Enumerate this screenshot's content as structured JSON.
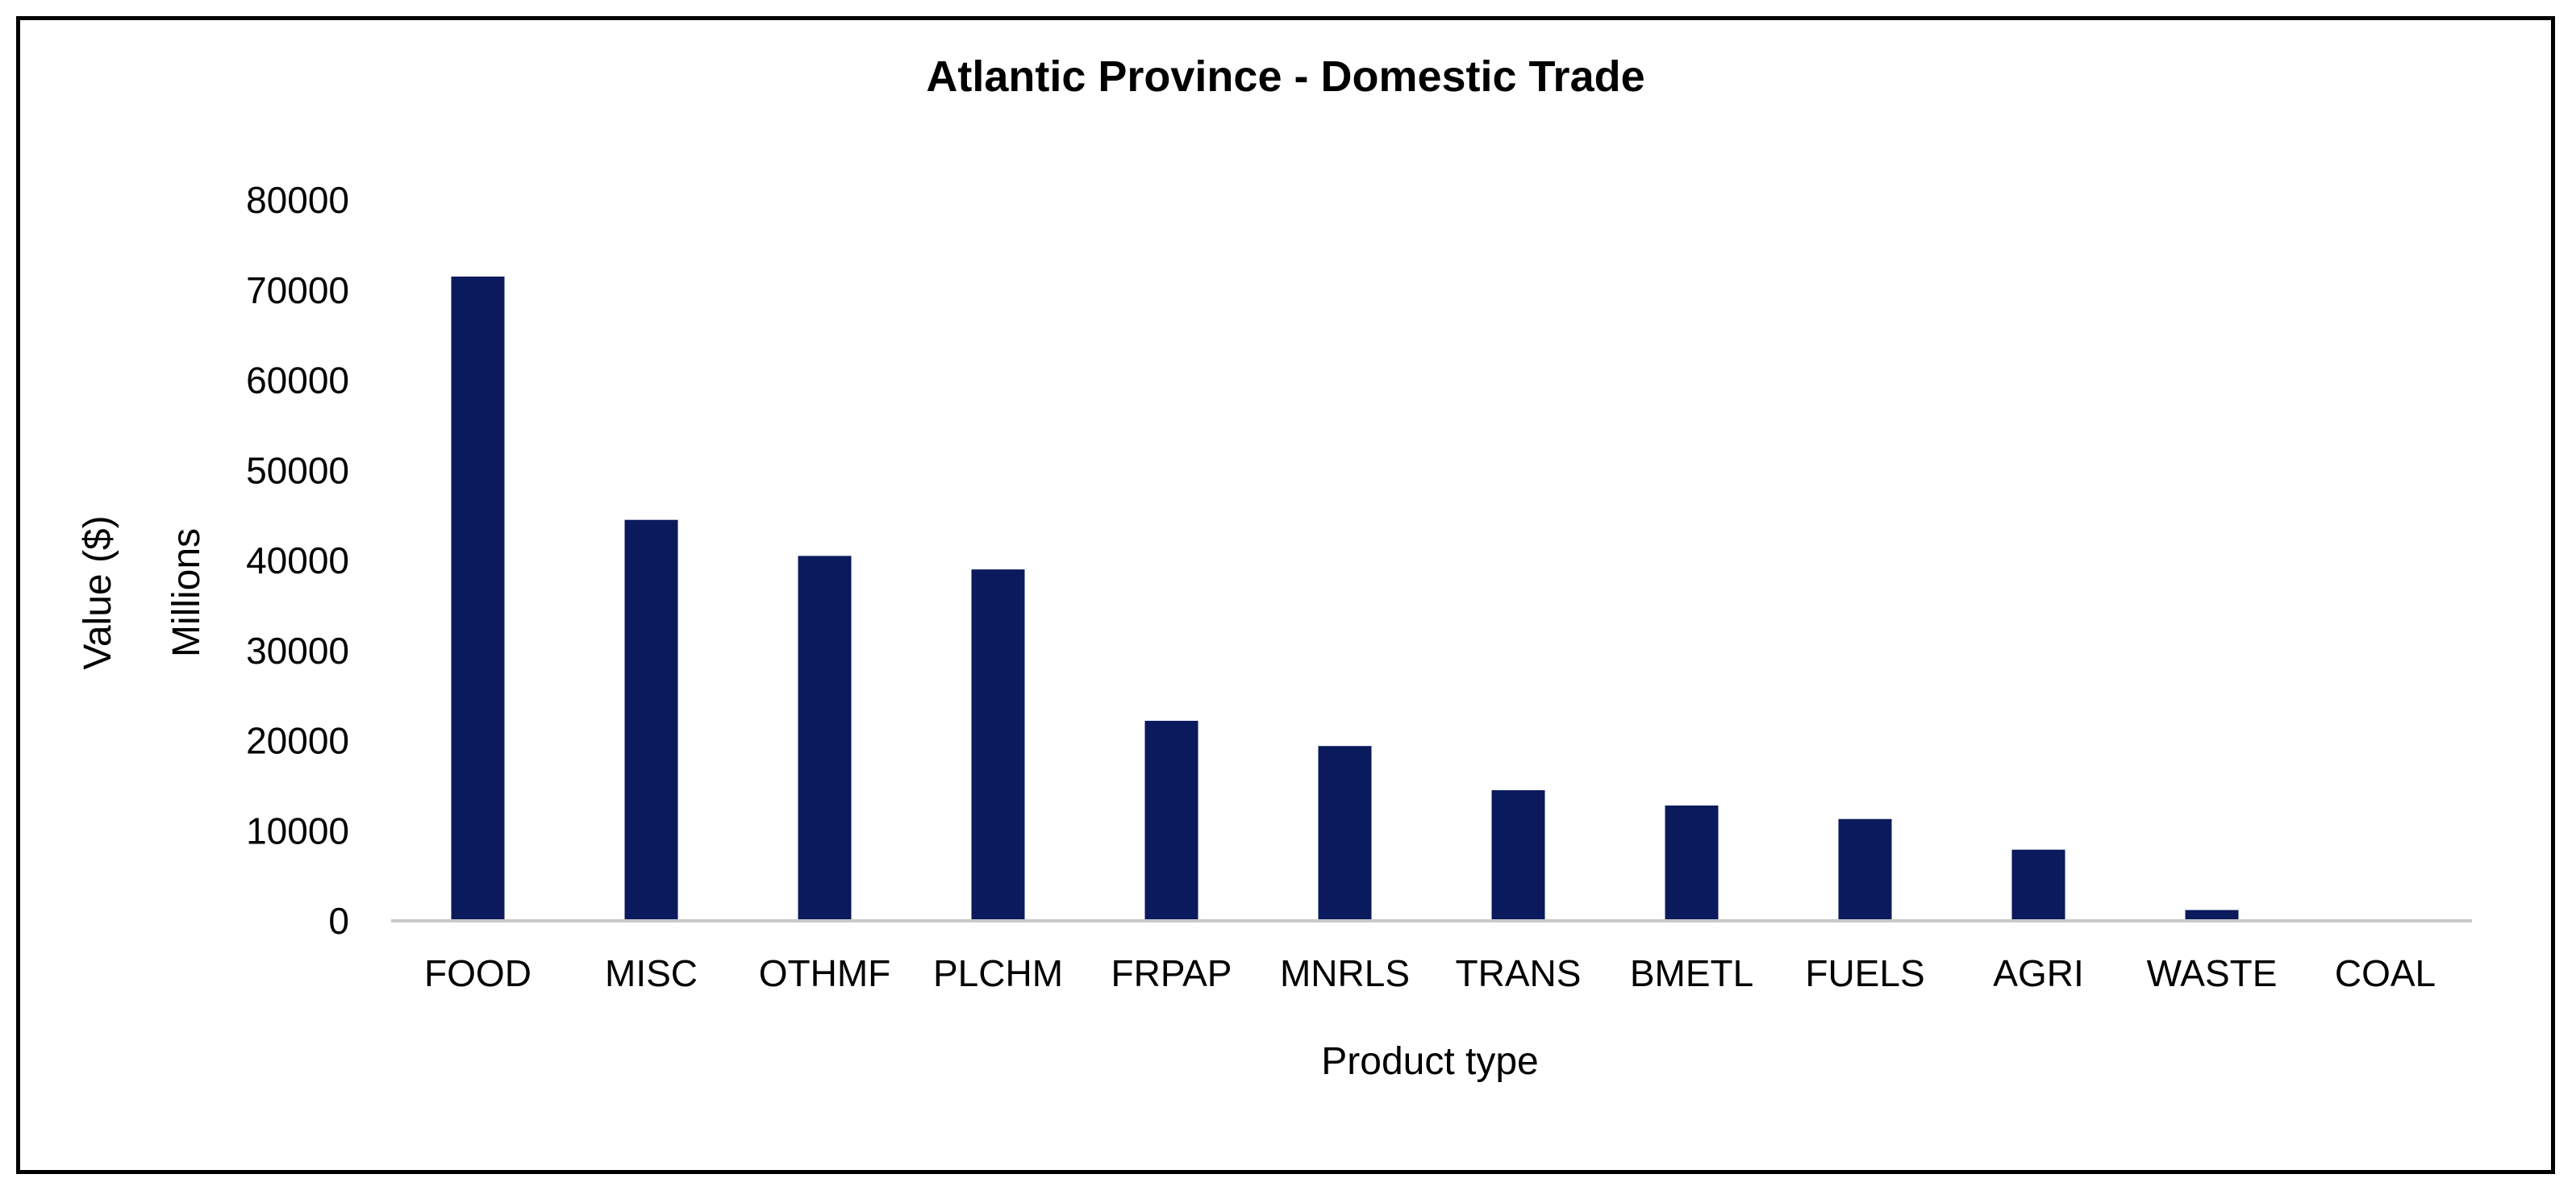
{
  "chart_data": {
    "type": "bar",
    "title": "Atlantic Province - Domestic Trade",
    "xlabel": "Product type",
    "ylabel": [
      "Value ($)",
      "Millions"
    ],
    "categories": [
      "FOOD",
      "MISC",
      "OTHMF",
      "PLCHM",
      "FRPAP",
      "MNRLS",
      "TRANS",
      "BMETL",
      "FUELS",
      "AGRI",
      "WASTE",
      "COAL"
    ],
    "values": [
      71500,
      44500,
      40500,
      39000,
      22200,
      19400,
      14500,
      12800,
      11300,
      7900,
      1200,
      0
    ],
    "ylim": [
      0,
      80000
    ],
    "yticks": [
      "0",
      "10000",
      "20000",
      "30000",
      "40000",
      "50000",
      "60000",
      "70000",
      "80000"
    ],
    "grid": false,
    "legend": "none",
    "bar_color": "#0a1a5c",
    "axis_color": "#c8c8c8"
  }
}
